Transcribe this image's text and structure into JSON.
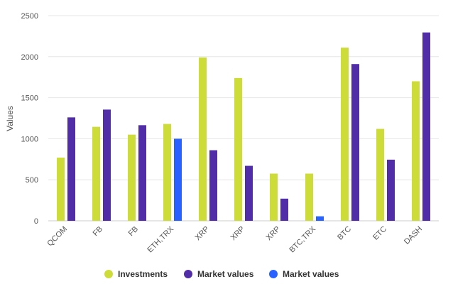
{
  "chart_data": {
    "type": "bar",
    "categories": [
      "QCOM",
      "FB",
      "FB",
      "ETH,TRX",
      "XRP",
      "XRP",
      "XRP",
      "BTC,TRX",
      "BTC",
      "ETC",
      "DASH"
    ],
    "series": [
      {
        "name": "Investments",
        "color": "#cddc39",
        "values": [
          770,
          1145,
          1050,
          1180,
          1990,
          1740,
          575,
          575,
          2110,
          1120,
          1700
        ]
      },
      {
        "name": "Market values",
        "color": "#512da8",
        "values": [
          1260,
          1355,
          1165,
          null,
          860,
          670,
          270,
          null,
          1910,
          745,
          2295
        ]
      },
      {
        "name": "Market values",
        "color": "#2962ff",
        "values": [
          null,
          null,
          null,
          1000,
          null,
          null,
          null,
          55,
          null,
          null,
          null
        ]
      }
    ],
    "ylabel": "Values",
    "xlabel": "",
    "ylim": [
      0,
      2500
    ],
    "yticks": [
      0,
      500,
      1000,
      1500,
      2000,
      2500
    ],
    "grid": true,
    "legend_position": "bottom"
  }
}
